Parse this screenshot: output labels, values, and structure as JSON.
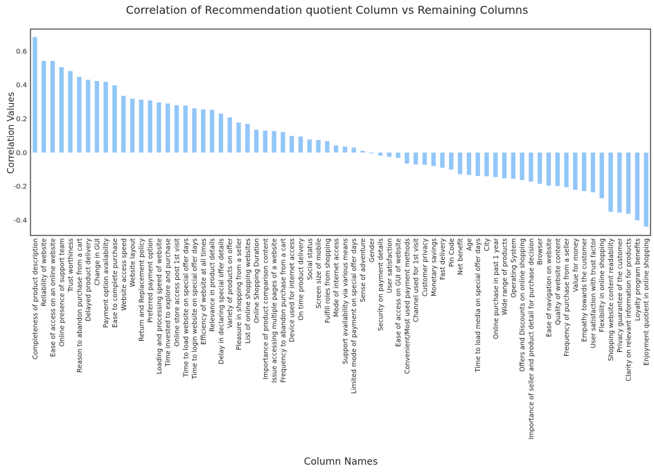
{
  "chart_data": {
    "type": "bar",
    "title": "Correlation of Recommendation quotient Column vs Remaining Columns",
    "xlabel": "Column Names",
    "ylabel": "Correlation Values",
    "ylim": [
      -0.49,
      0.73
    ],
    "yticks": [
      "-0.4",
      "-0.2",
      "0.0",
      "0.2",
      "0.4",
      "0.6"
    ],
    "grid": false,
    "bar_color": "#92c6f8",
    "categories": [
      "Completeness of product description",
      "Reliability of website",
      "Ease of access on an online website",
      "Online presence of support team",
      "Trust worthiness",
      "Reason to abandon purchase from a cart",
      "Delayed product delivery",
      "Change in GUI",
      "Payment option availability",
      "Ease to complete purchase",
      "Website access speed",
      "Website layout",
      "Return and Replacement policy",
      "Preferred payment option",
      "Loading and processing speed of website",
      "Time invested to explore and purchase",
      "Online store access post 1st visit",
      "Time to load website on special offer days",
      "Time to login website on special offer days",
      "Efficiency of website at all times",
      "Relevance in product details",
      "Delay in declaring special offer details",
      "Variety of products on offer",
      "Pleasure in shopping from a seller",
      "List of online shopping websites",
      "Online Shopping Duration",
      "Importance of product comparison content",
      "Issue accessing multiple pages of a website",
      "Frequency to abandon purchase from a cart",
      "Device used for internet access",
      "On time product delivery",
      "Social status",
      "Screen size of mobile",
      "Fulfill roles from shopping",
      "Mode of internet access",
      "Support availability via various means",
      "Limited mode of payment on special offer days",
      "Sense of adventure",
      "Gender",
      "Security on payment details",
      "User satisfaction",
      "Ease of access on GUI of website",
      "Convenient/Most used payment methods",
      "Channel used for 1st visit",
      "Customer privacy",
      "Monetary savings",
      "Fast delivery",
      "Pin Code",
      "Net benefit",
      "Age",
      "Time to load media on special offer days",
      "City",
      "Online purchase in past 1 year",
      "Wide range of products",
      "Operating System",
      "Offers and Discounts on online shopping",
      "Importance of seller and product detail for purchase decision",
      "Browser",
      "Ease of navigation on website",
      "Quality of website content",
      "Frequency of purchase from a seller",
      "Value for money",
      "Empathy towards the customer",
      "User satisfaction with trust factor",
      "Flexibility in online shopping",
      "Shopping website content readability",
      "Privacy guarantee of the customer",
      "Clarity on relevant information for products",
      "Loyalty program benefits",
      "Enjoyment quotient in online shopping"
    ],
    "values": [
      0.683,
      0.542,
      0.542,
      0.505,
      0.482,
      0.448,
      0.43,
      0.423,
      0.418,
      0.398,
      0.335,
      0.318,
      0.313,
      0.308,
      0.297,
      0.29,
      0.28,
      0.278,
      0.262,
      0.255,
      0.253,
      0.23,
      0.208,
      0.178,
      0.17,
      0.135,
      0.13,
      0.127,
      0.122,
      0.098,
      0.095,
      0.077,
      0.075,
      0.068,
      0.042,
      0.035,
      0.03,
      0.01,
      -0.005,
      -0.018,
      -0.025,
      -0.032,
      -0.065,
      -0.07,
      -0.072,
      -0.08,
      -0.09,
      -0.1,
      -0.128,
      -0.132,
      -0.138,
      -0.14,
      -0.145,
      -0.152,
      -0.155,
      -0.162,
      -0.172,
      -0.185,
      -0.195,
      -0.198,
      -0.205,
      -0.22,
      -0.228,
      -0.235,
      -0.27,
      -0.35,
      -0.355,
      -0.362,
      -0.4,
      -0.438
    ]
  }
}
